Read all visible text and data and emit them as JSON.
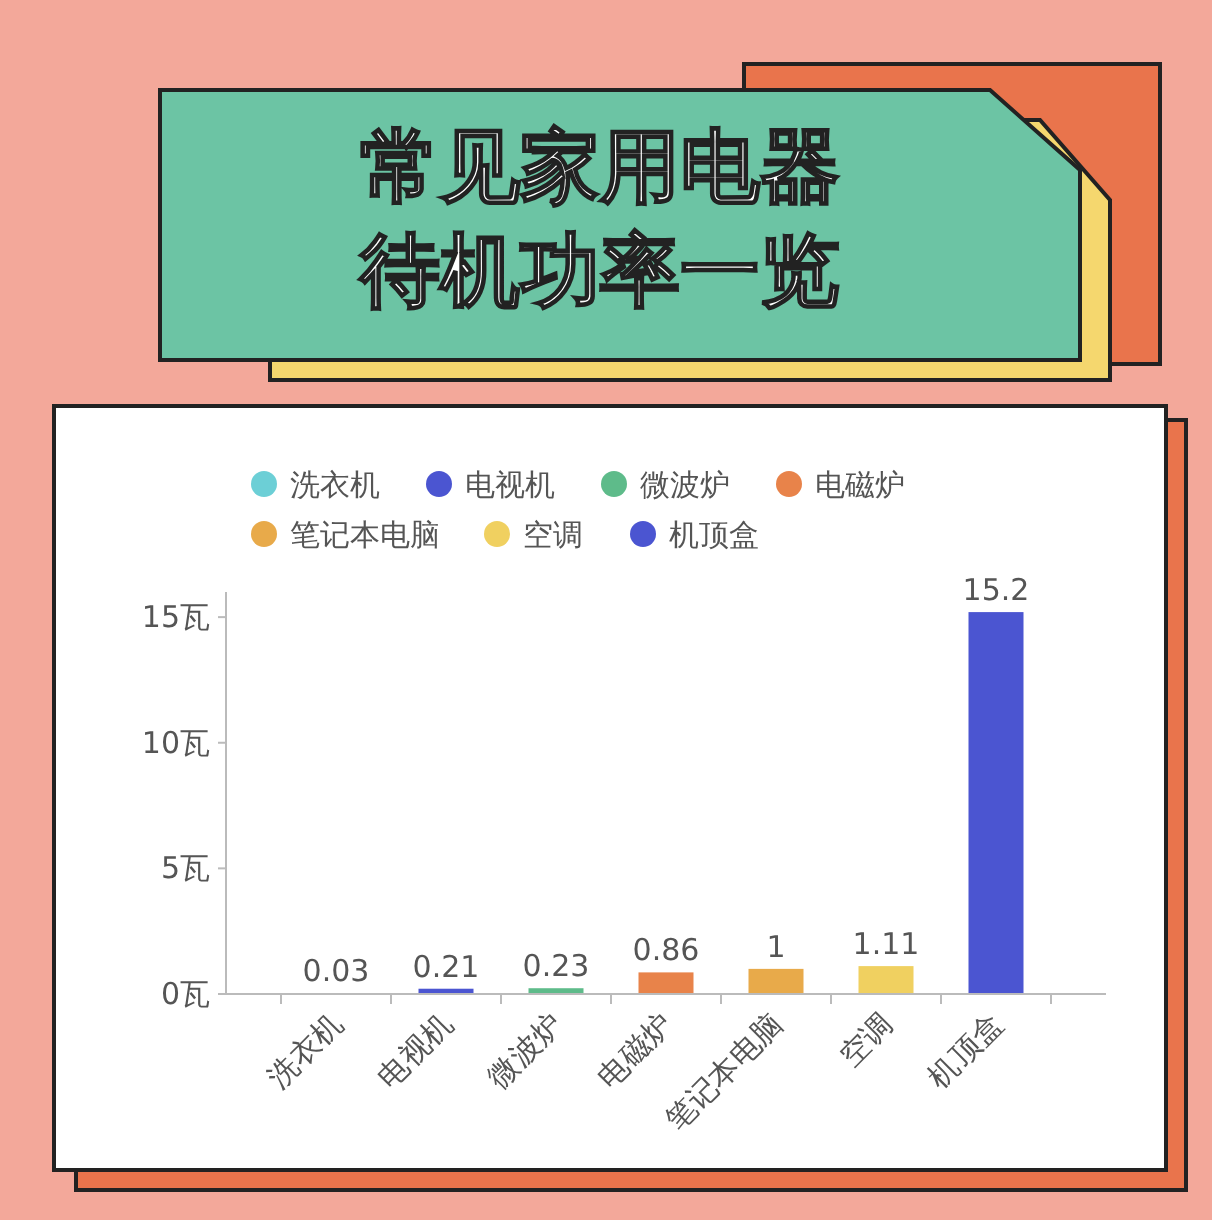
{
  "chart_data": {
    "type": "bar",
    "title": "常见家用电器待机功率一览",
    "categories": [
      "洗衣机",
      "电视机",
      "微波炉",
      "电磁炉",
      "笔记本电脑",
      "空调",
      "机顶盒"
    ],
    "series": [
      {
        "name": "洗衣机",
        "color": "#6ccfd6",
        "values": [
          0.03,
          null,
          null,
          null,
          null,
          null,
          null
        ]
      },
      {
        "name": "电视机",
        "color": "#4b55d1",
        "values": [
          null,
          0.21,
          null,
          null,
          null,
          null,
          null
        ]
      },
      {
        "name": "微波炉",
        "color": "#5ebb8a",
        "values": [
          null,
          null,
          0.23,
          null,
          null,
          null,
          null
        ]
      },
      {
        "name": "电磁炉",
        "color": "#e8834a",
        "values": [
          null,
          null,
          null,
          0.86,
          null,
          null,
          null
        ]
      },
      {
        "name": "笔记本电脑",
        "color": "#e8aa4a",
        "values": [
          null,
          null,
          null,
          null,
          1,
          null,
          null
        ]
      },
      {
        "name": "空调",
        "color": "#f0d060",
        "values": [
          null,
          null,
          null,
          null,
          null,
          1.11,
          null
        ]
      },
      {
        "name": "机顶盒",
        "color": "#4b55d1",
        "values": [
          null,
          null,
          null,
          null,
          null,
          null,
          15.2
        ]
      }
    ],
    "ylim": [
      0,
      16
    ],
    "yticks": [
      {
        "value": 0,
        "label": "0瓦"
      },
      {
        "value": 5,
        "label": "5瓦"
      },
      {
        "value": 10,
        "label": "10瓦"
      },
      {
        "value": 15,
        "label": "15瓦"
      }
    ],
    "data_labels": true,
    "legend": "top",
    "grid": false
  }
}
